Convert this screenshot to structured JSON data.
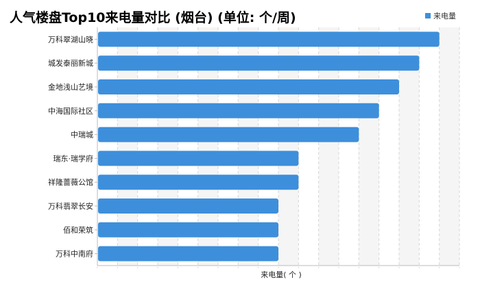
{
  "chart_data": {
    "type": "bar",
    "orientation": "horizontal",
    "title": "人气楼盘Top10来电量对比 (烟台) (单位: 个/周)",
    "xlabel": "来电量( 个 )",
    "ylabel": "",
    "categories": [
      "万科翠湖山晓",
      "城发泰丽新城",
      "金地浅山艺境",
      "中海国际社区",
      "中瑞城",
      "瑞东·瑞学府",
      "祥隆蔷薇公馆",
      "万科翡翠长安",
      "佰和荣筑",
      "万科中南府"
    ],
    "series": [
      {
        "name": "来电量",
        "values": [
          17,
          16,
          15,
          14,
          13,
          10,
          10,
          9,
          9,
          9
        ]
      }
    ],
    "xlim": [
      0,
      18
    ],
    "grid": true,
    "legend_position": "top-right",
    "bar_color": "#3d8fdb"
  }
}
